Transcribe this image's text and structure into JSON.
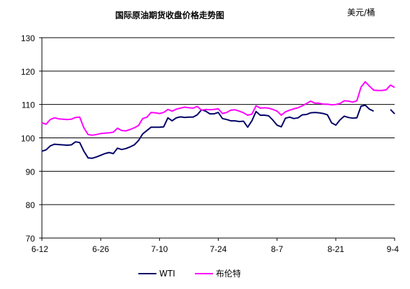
{
  "chart_data": {
    "type": "line",
    "title": "国际原油期货收盘价格走势图",
    "unit_label": "美元/桶",
    "xlabel": "",
    "ylabel": "",
    "ylim": [
      70,
      130
    ],
    "yticks": [
      70,
      80,
      90,
      100,
      110,
      120,
      130
    ],
    "grid": true,
    "legend_position": "bottom",
    "x_start": "6-12",
    "x_end": "9-4",
    "x_ticks": [
      "6-12",
      "6-26",
      "7-10",
      "7-24",
      "8-7",
      "8-21",
      "9-4"
    ],
    "series": [
      {
        "name": "WTI",
        "color": "#000066",
        "values": [
          [
            "6-12",
            96.0
          ],
          [
            "6-13",
            96.4
          ],
          [
            "6-14",
            97.6
          ],
          [
            "6-15",
            98.1
          ],
          [
            "6-16",
            98.0
          ],
          [
            "6-18",
            97.8
          ],
          [
            "6-19",
            97.9
          ],
          [
            "6-20",
            98.8
          ],
          [
            "6-21",
            98.6
          ],
          [
            "6-22",
            96.0
          ],
          [
            "6-23",
            94.0
          ],
          [
            "6-24",
            93.9
          ],
          [
            "6-25",
            94.3
          ],
          [
            "6-26",
            94.8
          ],
          [
            "6-27",
            95.3
          ],
          [
            "6-28",
            95.6
          ],
          [
            "6-29",
            95.3
          ],
          [
            "6-30",
            96.9
          ],
          [
            "7-1",
            96.5
          ],
          [
            "7-2",
            96.8
          ],
          [
            "7-3",
            97.3
          ],
          [
            "7-4",
            97.9
          ],
          [
            "7-5",
            99.2
          ],
          [
            "7-6",
            101.2
          ],
          [
            "7-8",
            103.2
          ],
          [
            "7-9",
            103.2
          ],
          [
            "7-10",
            103.2
          ],
          [
            "7-11",
            103.3
          ],
          [
            "7-12",
            106.0
          ],
          [
            "7-13",
            105.1
          ],
          [
            "7-14",
            106.0
          ],
          [
            "7-15",
            106.3
          ],
          [
            "7-16",
            106.1
          ],
          [
            "7-17",
            106.2
          ],
          [
            "7-18",
            106.2
          ],
          [
            "7-19",
            106.9
          ],
          [
            "7-20",
            108.4
          ],
          [
            "7-21",
            108.0
          ],
          [
            "7-22",
            107.2
          ],
          [
            "7-23",
            107.2
          ],
          [
            "7-24",
            107.6
          ],
          [
            "7-25",
            105.8
          ],
          [
            "7-26",
            105.5
          ],
          [
            "7-27",
            105.1
          ],
          [
            "7-28",
            105.1
          ],
          [
            "7-29",
            104.9
          ],
          [
            "7-30",
            105.0
          ],
          [
            "7-31",
            103.2
          ],
          [
            "8-1",
            105.1
          ],
          [
            "8-2",
            107.9
          ],
          [
            "8-3",
            106.8
          ],
          [
            "8-4",
            106.8
          ],
          [
            "8-5",
            106.6
          ],
          [
            "8-6",
            105.3
          ],
          [
            "8-7",
            103.8
          ],
          [
            "8-8",
            103.3
          ],
          [
            "8-9",
            105.9
          ],
          [
            "8-10",
            106.2
          ],
          [
            "8-11",
            105.8
          ],
          [
            "8-12",
            106.0
          ],
          [
            "8-13",
            106.9
          ],
          [
            "8-14",
            107.0
          ],
          [
            "8-15",
            107.5
          ],
          [
            "8-16",
            107.6
          ],
          [
            "8-17",
            107.5
          ],
          [
            "8-18",
            107.3
          ],
          [
            "8-19",
            106.9
          ],
          [
            "8-20",
            104.5
          ],
          [
            "8-21",
            103.8
          ],
          [
            "8-22",
            105.4
          ],
          [
            "8-23",
            106.5
          ],
          [
            "8-24",
            106.1
          ],
          [
            "8-25",
            105.9
          ],
          [
            "8-26",
            106.0
          ],
          [
            "8-27",
            109.5
          ],
          [
            "8-28",
            109.8
          ],
          [
            "8-29",
            108.6
          ],
          [
            "8-30",
            108.0
          ],
          [
            "9-3",
            108.5
          ],
          [
            "9-4",
            107.2
          ]
        ]
      },
      {
        "name": "布伦特",
        "color": "#ff00ff",
        "values": [
          [
            "6-12",
            104.5
          ],
          [
            "6-13",
            104.1
          ],
          [
            "6-14",
            105.5
          ],
          [
            "6-15",
            106.0
          ],
          [
            "6-16",
            105.7
          ],
          [
            "6-18",
            105.5
          ],
          [
            "6-19",
            105.6
          ],
          [
            "6-20",
            106.1
          ],
          [
            "6-21",
            106.2
          ],
          [
            "6-22",
            103.0
          ],
          [
            "6-23",
            101.0
          ],
          [
            "6-24",
            100.8
          ],
          [
            "6-25",
            101.0
          ],
          [
            "6-26",
            101.3
          ],
          [
            "6-27",
            101.4
          ],
          [
            "6-28",
            101.5
          ],
          [
            "6-29",
            101.7
          ],
          [
            "6-30",
            102.9
          ],
          [
            "7-1",
            102.2
          ],
          [
            "7-2",
            102.1
          ],
          [
            "7-3",
            102.5
          ],
          [
            "7-4",
            103.0
          ],
          [
            "7-5",
            103.7
          ],
          [
            "7-6",
            105.8
          ],
          [
            "7-7",
            106.2
          ],
          [
            "7-8",
            107.6
          ],
          [
            "7-9",
            107.5
          ],
          [
            "7-10",
            107.3
          ],
          [
            "7-11",
            107.6
          ],
          [
            "7-12",
            108.5
          ],
          [
            "7-13",
            108.0
          ],
          [
            "7-14",
            108.6
          ],
          [
            "7-15",
            108.9
          ],
          [
            "7-16",
            109.2
          ],
          [
            "7-17",
            109.0
          ],
          [
            "7-18",
            108.9
          ],
          [
            "7-19",
            109.4
          ],
          [
            "7-20",
            108.3
          ],
          [
            "7-21",
            108.5
          ],
          [
            "7-22",
            108.4
          ],
          [
            "7-23",
            108.5
          ],
          [
            "7-24",
            108.7
          ],
          [
            "7-25",
            107.3
          ],
          [
            "7-26",
            107.6
          ],
          [
            "7-27",
            108.3
          ],
          [
            "7-28",
            108.4
          ],
          [
            "7-29",
            108.0
          ],
          [
            "7-30",
            107.5
          ],
          [
            "7-31",
            106.8
          ],
          [
            "8-1",
            107.1
          ],
          [
            "8-2",
            109.6
          ],
          [
            "8-3",
            108.9
          ],
          [
            "8-4",
            109.0
          ],
          [
            "8-5",
            108.9
          ],
          [
            "8-6",
            108.5
          ],
          [
            "8-7",
            108.0
          ],
          [
            "8-8",
            106.8
          ],
          [
            "8-9",
            107.8
          ],
          [
            "8-10",
            108.3
          ],
          [
            "8-11",
            108.7
          ],
          [
            "8-12",
            109.0
          ],
          [
            "8-13",
            109.6
          ],
          [
            "8-14",
            110.3
          ],
          [
            "8-15",
            111.0
          ],
          [
            "8-16",
            110.4
          ],
          [
            "8-17",
            110.4
          ],
          [
            "8-18",
            110.1
          ],
          [
            "8-19",
            110.1
          ],
          [
            "8-20",
            109.9
          ],
          [
            "8-21",
            110.0
          ],
          [
            "8-22",
            110.3
          ],
          [
            "8-23",
            111.1
          ],
          [
            "8-24",
            111.0
          ],
          [
            "8-25",
            110.7
          ],
          [
            "8-26",
            111.1
          ],
          [
            "8-27",
            115.2
          ],
          [
            "8-28",
            116.8
          ],
          [
            "8-29",
            115.5
          ],
          [
            "8-30",
            114.3
          ],
          [
            "8-31",
            114.2
          ],
          [
            "9-1",
            114.2
          ],
          [
            "9-2",
            114.4
          ],
          [
            "9-3",
            115.8
          ],
          [
            "9-4",
            115.1
          ]
        ]
      }
    ]
  }
}
